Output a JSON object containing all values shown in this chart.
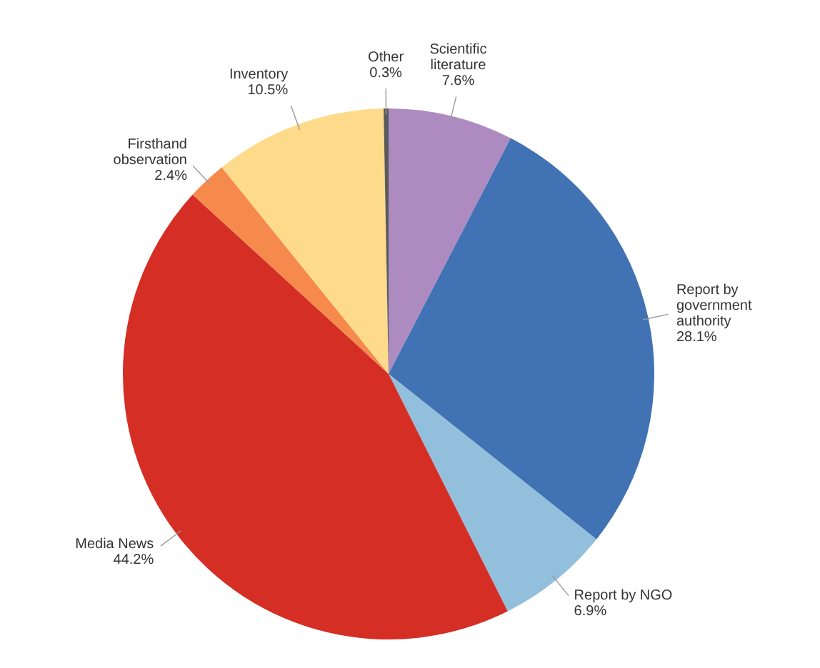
{
  "chart_data": {
    "type": "pie",
    "categories": [
      "Scientific literature",
      "Report by government authority",
      "Report by NGO",
      "Media News",
      "Firsthand observation",
      "Inventory",
      "Other"
    ],
    "values": [
      7.6,
      28.1,
      6.9,
      44.2,
      2.4,
      10.5,
      0.3
    ],
    "colors": [
      "#ad8bc0",
      "#4072b4",
      "#92bfdc",
      "#d42e25",
      "#f58a4c",
      "#fedb8b",
      "#5a5a5a"
    ],
    "value_labels": [
      "7.6%",
      "28.1%",
      "6.9%",
      "44.2%",
      "2.4%",
      "10.5%",
      "0.3%"
    ]
  }
}
